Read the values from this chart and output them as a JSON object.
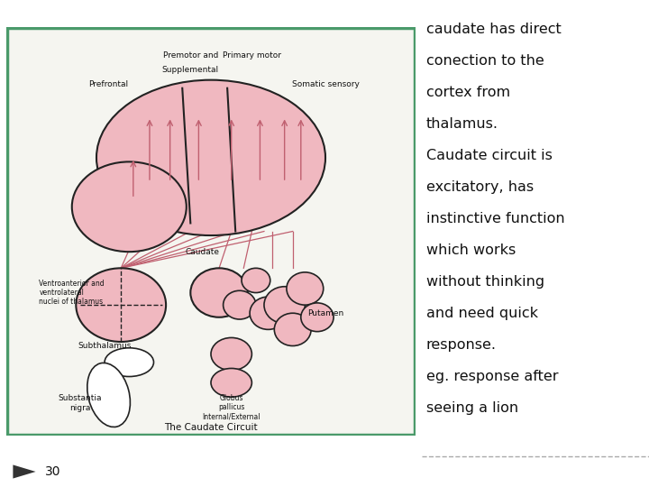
{
  "bg_color": "#ffffff",
  "left_panel_bg": "#f5f5f0",
  "border_color": "#4a9a6a",
  "border_linewidth": 2.5,
  "text_color": "#111111",
  "pink_fill": "#f0b8c0",
  "pink_edge": "#222222",
  "right_text_lines": [
    "caudate has direct",
    "conection to the",
    "cortex from",
    "thalamus.",
    "Caudate circuit is",
    "excitatory, has",
    "instinctive function",
    "which works",
    "without thinking",
    "and need quick",
    "response.",
    "eg. response after",
    "seeing a lion"
  ],
  "slide_number": "30",
  "caption": "The Caudate Circuit",
  "labels": {
    "premotor": "Premotor and\nSupplemental",
    "primary_motor": "Primary motor",
    "prefrontal": "Prefrontal",
    "somatic": "Somatic sensory",
    "ventroanterior": "Ventroanterior and\nventrolateral\nnuclei of thalamus",
    "caudate": "Caudate",
    "putamen": "Putamen",
    "subthalamus": "Subthalamus",
    "globus": "Globus\npallicus\nInternal/External",
    "substantia": "Substantia\nnigra"
  }
}
